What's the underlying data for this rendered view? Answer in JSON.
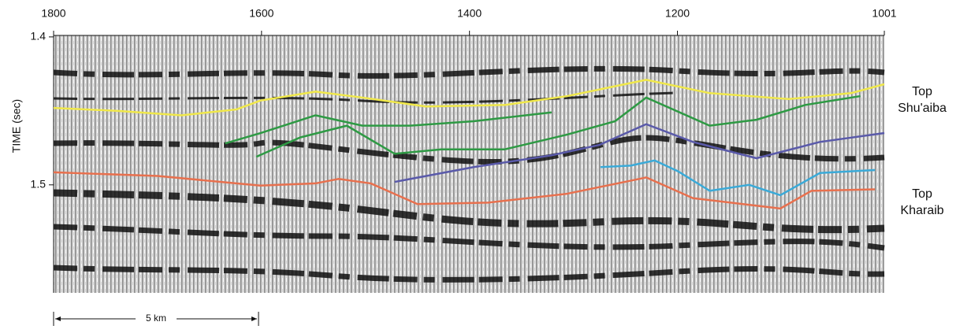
{
  "chart_data": {
    "type": "line",
    "y_label": "TIME (sec)",
    "xlim": [
      1800,
      1001
    ],
    "xticks": [
      1800,
      1600,
      1400,
      1200,
      1001
    ],
    "ylim": [
      1.573,
      1.399
    ],
    "yticks": [
      1.4,
      1.5
    ],
    "scale_label": "5 km",
    "series": [
      {
        "name": "Top Shu'aiba",
        "color": "#f0e84a",
        "x": [
          1800,
          1738,
          1677,
          1624,
          1601,
          1548,
          1503,
          1442,
          1366,
          1306,
          1230,
          1169,
          1093,
          1033,
          1001
        ],
        "values": [
          1.448,
          1.45,
          1.453,
          1.449,
          1.443,
          1.437,
          1.441,
          1.447,
          1.446,
          1.44,
          1.429,
          1.438,
          1.442,
          1.438,
          1.432
        ]
      },
      {
        "color": "#2e9a44",
        "x": [
          1635,
          1601,
          1548,
          1503,
          1457,
          1396,
          1321
        ],
        "values": [
          1.472,
          1.465,
          1.453,
          1.46,
          1.46,
          1.457,
          1.451
        ]
      },
      {
        "color": "#2e9a44",
        "x": [
          1605,
          1563,
          1518,
          1472,
          1427,
          1366,
          1306,
          1260,
          1230,
          1169,
          1124,
          1077,
          1024
        ],
        "values": [
          1.481,
          1.468,
          1.46,
          1.479,
          1.476,
          1.476,
          1.466,
          1.457,
          1.441,
          1.46,
          1.456,
          1.446,
          1.44
        ]
      },
      {
        "color": "#5a5aaa",
        "x": [
          1472,
          1396,
          1321,
          1275,
          1230,
          1185,
          1124,
          1063,
          1001
        ],
        "values": [
          1.498,
          1.488,
          1.48,
          1.473,
          1.459,
          1.471,
          1.482,
          1.471,
          1.465
        ]
      },
      {
        "color": "#3aaad8",
        "x": [
          1274,
          1245,
          1222,
          1199,
          1169,
          1131,
          1101,
          1063,
          1010
        ],
        "values": [
          1.488,
          1.487,
          1.4835,
          1.491,
          1.504,
          1.5,
          1.507,
          1.492,
          1.49
        ]
      },
      {
        "name": "Top Kharaib",
        "color": "#e8704e",
        "x": [
          1800,
          1700,
          1601,
          1548,
          1526,
          1495,
          1450,
          1382,
          1306,
          1230,
          1185,
          1101,
          1071,
          1010
        ],
        "values": [
          1.4915,
          1.494,
          1.5005,
          1.499,
          1.496,
          1.499,
          1.513,
          1.512,
          1.506,
          1.495,
          1.509,
          1.516,
          1.504,
          1.503
        ]
      }
    ]
  }
}
